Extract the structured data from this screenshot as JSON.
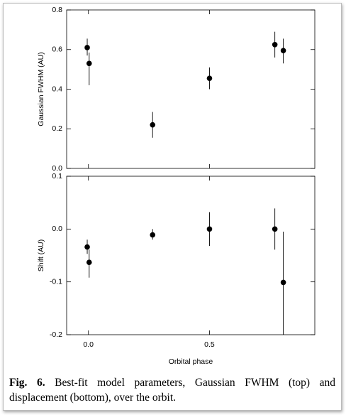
{
  "chart_data": [
    {
      "type": "scatter",
      "y_label": "Gaussian FWHM (AU)",
      "color": "#000000",
      "x": [
        -0.005,
        0.003,
        0.265,
        0.5,
        0.77,
        0.805
      ],
      "values": [
        0.61,
        0.53,
        0.22,
        0.455,
        0.625,
        0.595
      ],
      "errors_minus": [
        0.04,
        0.11,
        0.065,
        0.055,
        0.065,
        0.065
      ],
      "errors_plus": [
        0.045,
        0.055,
        0.065,
        0.055,
        0.065,
        0.06
      ],
      "xlim": [
        -0.09,
        0.935
      ],
      "ylim": [
        0,
        0.8
      ],
      "yticks": [
        {
          "value": 0,
          "label": "0.0"
        },
        0.2,
        0.4,
        0.6,
        0.8
      ]
    },
    {
      "type": "scatter",
      "y_label": "Shift (AU)",
      "x_label": "Orbital phase",
      "color": "#000000",
      "x": [
        -0.005,
        0.003,
        0.265,
        0.5,
        0.77,
        0.805
      ],
      "values": [
        -0.034,
        -0.063,
        -0.011,
        0,
        0,
        -0.101
      ],
      "errors_minus": [
        0.013,
        0.029,
        0.009,
        0.032,
        0.039,
        0.1
      ],
      "errors_plus": [
        0.014,
        0.024,
        0.011,
        0.032,
        0.039,
        0.096
      ],
      "xlim": [
        -0.09,
        0.935
      ],
      "ylim": [
        -0.2,
        0.1
      ],
      "xticks": [
        {
          "value": 0,
          "label": "0.0"
        },
        0.5
      ],
      "yticks": [
        -0.2,
        -0.1,
        {
          "value": 0,
          "label": "0.0"
        },
        0.1
      ]
    }
  ],
  "caption": {
    "label": "Fig. 6.",
    "text": "Best-fit model parameters, Gaussian FWHM (top) and displacement (bottom), over the orbit."
  }
}
